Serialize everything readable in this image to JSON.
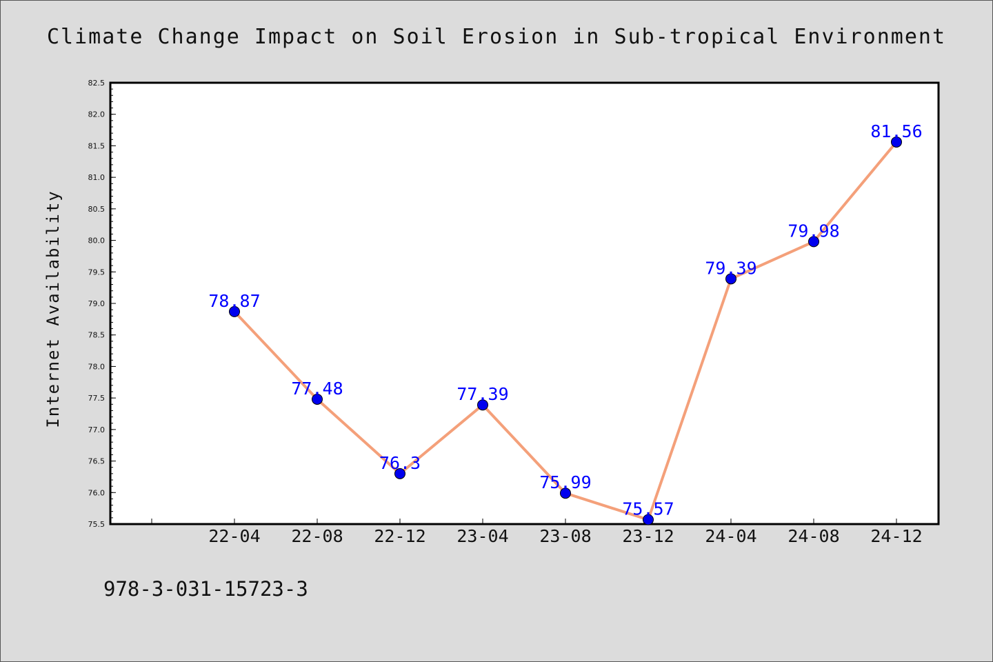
{
  "chart_data": {
    "type": "line",
    "title": "Climate Change Impact on Soil Erosion in Sub-tropical Environment",
    "xlabel": "",
    "ylabel": "Internet Availability",
    "categories": [
      "22-04",
      "22-08",
      "22-12",
      "23-04",
      "23-08",
      "23-12",
      "24-04",
      "24-08",
      "24-12"
    ],
    "series": [
      {
        "values": [
          78.87,
          77.48,
          76.3,
          77.39,
          75.99,
          75.57,
          79.39,
          79.98,
          81.56
        ],
        "data_labels": [
          "78.87",
          "77.48",
          "76.3",
          "77.39",
          "75.99",
          "75.57",
          "79.39",
          "79.98",
          "81.56"
        ],
        "line_color": "#f4a07a",
        "marker_color": "#0000ee"
      }
    ],
    "yticks": [
      "75.5",
      "76.0",
      "76.5",
      "77.0",
      "77.5",
      "78.0",
      "78.5",
      "79.0",
      "79.5",
      "80.0",
      "80.5",
      "81.0",
      "81.5",
      "82.0",
      "82.5"
    ],
    "ylim": [
      75.5,
      82.5
    ],
    "grid": false,
    "legend": "none",
    "label_color": "#0000ff",
    "background_color": "#dcdcdc",
    "plot_background_color": "#ffffff"
  },
  "footer": {
    "text": "978-3-031-15723-3"
  }
}
